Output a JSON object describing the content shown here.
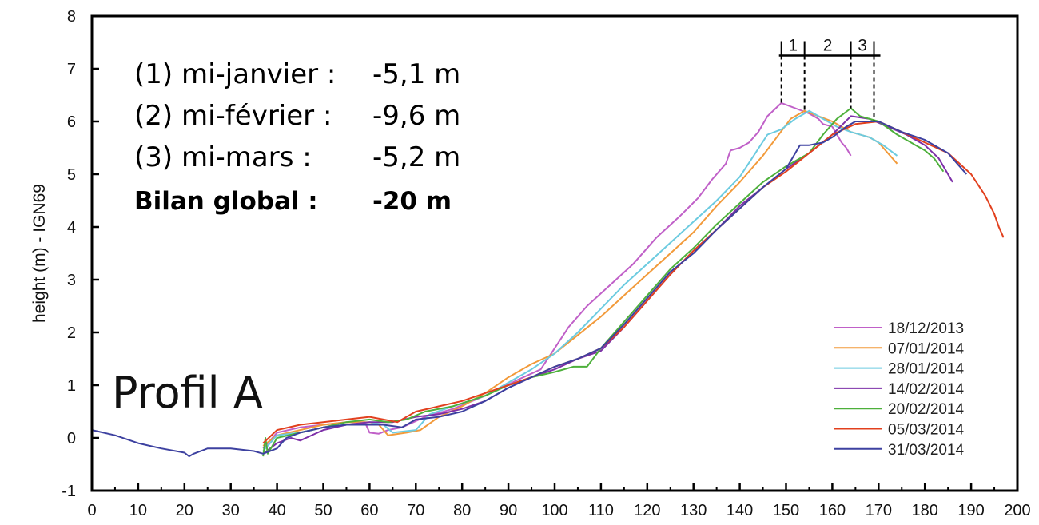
{
  "chart_data": {
    "type": "line",
    "xlabel": "",
    "ylabel": "height (m) - IGN69",
    "xlim": [
      0,
      200
    ],
    "ylim": [
      -1,
      8
    ],
    "x_ticks": [
      "0",
      "10",
      "20",
      "30",
      "40",
      "50",
      "60",
      "70",
      "80",
      "90",
      "100",
      "110",
      "120",
      "130",
      "140",
      "150",
      "160",
      "170",
      "180",
      "190",
      "200"
    ],
    "y_ticks": [
      "-1",
      "0",
      "1",
      "2",
      "3",
      "4",
      "5",
      "6",
      "7",
      "8"
    ],
    "grid": false,
    "legend_position": "bottom-right",
    "annotations": {
      "line1_label": "(1) mi-janvier :",
      "line1_value": "-5,1 m",
      "line2_label": "(2) mi-février :",
      "line2_value": "-9,6 m",
      "line3_label": "(3) mi-mars :",
      "line3_value": "-5,2 m",
      "total_label": "Bilan global :",
      "total_value": "-20 m",
      "profil": "Profil A",
      "zones": [
        "1",
        "2",
        "3"
      ]
    },
    "retreat_markers_x": [
      149,
      154,
      164,
      169
    ],
    "retreat_bar_y": 7.25,
    "series": [
      {
        "name": "18/12/2013",
        "color": "#c060c8",
        "points": [
          [
            37,
            -0.2
          ],
          [
            40,
            0.1
          ],
          [
            45,
            0.2
          ],
          [
            50,
            0.25
          ],
          [
            55,
            0.3
          ],
          [
            59,
            0.3
          ],
          [
            60,
            0.1
          ],
          [
            62,
            0.08
          ],
          [
            64,
            0.15
          ],
          [
            67,
            0.2
          ],
          [
            72,
            0.4
          ],
          [
            78,
            0.55
          ],
          [
            85,
            0.8
          ],
          [
            92,
            1.1
          ],
          [
            97,
            1.3
          ],
          [
            100,
            1.7
          ],
          [
            103,
            2.1
          ],
          [
            107,
            2.5
          ],
          [
            112,
            2.9
          ],
          [
            117,
            3.3
          ],
          [
            122,
            3.8
          ],
          [
            127,
            4.2
          ],
          [
            131,
            4.55
          ],
          [
            134,
            4.9
          ],
          [
            137,
            5.2
          ],
          [
            138,
            5.45
          ],
          [
            140,
            5.5
          ],
          [
            142,
            5.6
          ],
          [
            144,
            5.8
          ],
          [
            146,
            6.1
          ],
          [
            149,
            6.35
          ],
          [
            152,
            6.25
          ],
          [
            155,
            6.15
          ],
          [
            157,
            6.05
          ],
          [
            158,
            5.95
          ],
          [
            160,
            5.9
          ],
          [
            161,
            5.75
          ],
          [
            162,
            5.6
          ],
          [
            163,
            5.5
          ],
          [
            164,
            5.35
          ]
        ]
      },
      {
        "name": "07/01/2014",
        "color": "#f29a3a",
        "points": [
          [
            37,
            -0.15
          ],
          [
            40,
            0.05
          ],
          [
            45,
            0.15
          ],
          [
            50,
            0.25
          ],
          [
            55,
            0.3
          ],
          [
            60,
            0.3
          ],
          [
            62,
            0.25
          ],
          [
            64,
            0.05
          ],
          [
            68,
            0.1
          ],
          [
            71,
            0.15
          ],
          [
            75,
            0.4
          ],
          [
            80,
            0.6
          ],
          [
            85,
            0.85
          ],
          [
            90,
            1.15
          ],
          [
            95,
            1.4
          ],
          [
            100,
            1.6
          ],
          [
            105,
            1.95
          ],
          [
            110,
            2.3
          ],
          [
            115,
            2.7
          ],
          [
            120,
            3.1
          ],
          [
            125,
            3.5
          ],
          [
            130,
            3.9
          ],
          [
            135,
            4.4
          ],
          [
            140,
            4.85
          ],
          [
            145,
            5.35
          ],
          [
            148,
            5.7
          ],
          [
            151,
            6.05
          ],
          [
            154,
            6.2
          ],
          [
            157,
            6.1
          ],
          [
            160,
            6.0
          ],
          [
            164,
            5.8
          ],
          [
            168,
            5.7
          ],
          [
            170,
            5.6
          ],
          [
            172,
            5.4
          ],
          [
            174,
            5.2
          ]
        ]
      },
      {
        "name": "28/01/2014",
        "color": "#6ccbe0",
        "points": [
          [
            37,
            -0.25
          ],
          [
            40,
            0.05
          ],
          [
            45,
            0.1
          ],
          [
            50,
            0.2
          ],
          [
            55,
            0.25
          ],
          [
            60,
            0.3
          ],
          [
            63,
            0.25
          ],
          [
            65,
            0.1
          ],
          [
            70,
            0.15
          ],
          [
            73,
            0.45
          ],
          [
            78,
            0.6
          ],
          [
            85,
            0.8
          ],
          [
            90,
            1.05
          ],
          [
            95,
            1.3
          ],
          [
            100,
            1.6
          ],
          [
            105,
            2.0
          ],
          [
            110,
            2.45
          ],
          [
            115,
            2.9
          ],
          [
            120,
            3.3
          ],
          [
            125,
            3.7
          ],
          [
            130,
            4.1
          ],
          [
            135,
            4.5
          ],
          [
            140,
            4.95
          ],
          [
            143,
            5.35
          ],
          [
            146,
            5.75
          ],
          [
            149,
            5.85
          ],
          [
            152,
            6.05
          ],
          [
            155,
            6.2
          ],
          [
            158,
            6.05
          ],
          [
            161,
            5.9
          ],
          [
            164,
            5.8
          ],
          [
            168,
            5.7
          ],
          [
            171,
            5.55
          ],
          [
            174,
            5.35
          ]
        ]
      },
      {
        "name": "14/02/2014",
        "color": "#7d2fa8",
        "points": [
          [
            37,
            -0.3
          ],
          [
            40,
            -0.1
          ],
          [
            43,
            0.0
          ],
          [
            45,
            -0.05
          ],
          [
            50,
            0.15
          ],
          [
            55,
            0.25
          ],
          [
            60,
            0.3
          ],
          [
            65,
            0.3
          ],
          [
            70,
            0.4
          ],
          [
            75,
            0.45
          ],
          [
            80,
            0.55
          ],
          [
            85,
            0.7
          ],
          [
            90,
            0.95
          ],
          [
            95,
            1.15
          ],
          [
            100,
            1.3
          ],
          [
            105,
            1.5
          ],
          [
            110,
            1.65
          ],
          [
            115,
            2.1
          ],
          [
            120,
            2.6
          ],
          [
            125,
            3.1
          ],
          [
            130,
            3.55
          ],
          [
            135,
            3.95
          ],
          [
            140,
            4.4
          ],
          [
            145,
            4.75
          ],
          [
            150,
            5.1
          ],
          [
            155,
            5.4
          ],
          [
            160,
            5.75
          ],
          [
            164,
            6.1
          ],
          [
            168,
            6.05
          ],
          [
            172,
            5.9
          ],
          [
            176,
            5.75
          ],
          [
            180,
            5.55
          ],
          [
            183,
            5.3
          ],
          [
            186,
            4.85
          ]
        ]
      },
      {
        "name": "20/02/2014",
        "color": "#4db03b",
        "points": [
          [
            37,
            -0.35
          ],
          [
            37.5,
            0.0
          ],
          [
            38,
            -0.3
          ],
          [
            40,
            0.0
          ],
          [
            45,
            0.1
          ],
          [
            50,
            0.2
          ],
          [
            55,
            0.3
          ],
          [
            60,
            0.35
          ],
          [
            64,
            0.3
          ],
          [
            68,
            0.35
          ],
          [
            72,
            0.5
          ],
          [
            78,
            0.6
          ],
          [
            85,
            0.8
          ],
          [
            90,
            1.0
          ],
          [
            95,
            1.15
          ],
          [
            100,
            1.25
          ],
          [
            104,
            1.35
          ],
          [
            107,
            1.35
          ],
          [
            110,
            1.7
          ],
          [
            115,
            2.2
          ],
          [
            120,
            2.7
          ],
          [
            125,
            3.2
          ],
          [
            130,
            3.6
          ],
          [
            135,
            4.05
          ],
          [
            140,
            4.45
          ],
          [
            145,
            4.85
          ],
          [
            150,
            5.15
          ],
          [
            155,
            5.4
          ],
          [
            158,
            5.75
          ],
          [
            161,
            6.05
          ],
          [
            164,
            6.25
          ],
          [
            166,
            6.1
          ],
          [
            170,
            6.0
          ],
          [
            174,
            5.75
          ],
          [
            178,
            5.55
          ],
          [
            180,
            5.45
          ],
          [
            182,
            5.3
          ],
          [
            184,
            5.05
          ]
        ]
      },
      {
        "name": "05/03/2014",
        "color": "#e2401e",
        "points": [
          [
            37,
            -0.1
          ],
          [
            40,
            0.15
          ],
          [
            45,
            0.25
          ],
          [
            50,
            0.3
          ],
          [
            55,
            0.35
          ],
          [
            60,
            0.4
          ],
          [
            63,
            0.35
          ],
          [
            66,
            0.3
          ],
          [
            70,
            0.5
          ],
          [
            75,
            0.6
          ],
          [
            80,
            0.7
          ],
          [
            85,
            0.85
          ],
          [
            90,
            1.0
          ],
          [
            95,
            1.15
          ],
          [
            100,
            1.35
          ],
          [
            105,
            1.5
          ],
          [
            110,
            1.7
          ],
          [
            115,
            2.1
          ],
          [
            120,
            2.6
          ],
          [
            125,
            3.1
          ],
          [
            130,
            3.55
          ],
          [
            135,
            3.95
          ],
          [
            140,
            4.35
          ],
          [
            145,
            4.75
          ],
          [
            150,
            5.05
          ],
          [
            155,
            5.4
          ],
          [
            160,
            5.75
          ],
          [
            165,
            5.95
          ],
          [
            170,
            6.0
          ],
          [
            175,
            5.8
          ],
          [
            180,
            5.6
          ],
          [
            185,
            5.4
          ],
          [
            190,
            5.0
          ],
          [
            193,
            4.6
          ],
          [
            195,
            4.25
          ],
          [
            196,
            4.0
          ],
          [
            197,
            3.8
          ]
        ]
      },
      {
        "name": "31/03/2014",
        "color": "#3d41a0",
        "points": [
          [
            0,
            0.15
          ],
          [
            5,
            0.05
          ],
          [
            10,
            -0.1
          ],
          [
            15,
            -0.2
          ],
          [
            20,
            -0.28
          ],
          [
            21,
            -0.35
          ],
          [
            22,
            -0.3
          ],
          [
            25,
            -0.2
          ],
          [
            30,
            -0.2
          ],
          [
            35,
            -0.25
          ],
          [
            37,
            -0.3
          ],
          [
            40,
            -0.2
          ],
          [
            42,
            0.0
          ],
          [
            45,
            0.1
          ],
          [
            50,
            0.2
          ],
          [
            55,
            0.25
          ],
          [
            60,
            0.25
          ],
          [
            63,
            0.25
          ],
          [
            67,
            0.2
          ],
          [
            70,
            0.35
          ],
          [
            75,
            0.4
          ],
          [
            80,
            0.5
          ],
          [
            85,
            0.7
          ],
          [
            90,
            0.95
          ],
          [
            95,
            1.15
          ],
          [
            100,
            1.35
          ],
          [
            105,
            1.5
          ],
          [
            110,
            1.7
          ],
          [
            115,
            2.15
          ],
          [
            120,
            2.65
          ],
          [
            125,
            3.15
          ],
          [
            130,
            3.5
          ],
          [
            135,
            3.95
          ],
          [
            140,
            4.35
          ],
          [
            145,
            4.75
          ],
          [
            150,
            5.1
          ],
          [
            153,
            5.55
          ],
          [
            155,
            5.55
          ],
          [
            158,
            5.6
          ],
          [
            160,
            5.7
          ],
          [
            163,
            5.9
          ],
          [
            165,
            6.0
          ],
          [
            170,
            6.0
          ],
          [
            175,
            5.8
          ],
          [
            180,
            5.65
          ],
          [
            185,
            5.4
          ],
          [
            187,
            5.2
          ],
          [
            189,
            5.0
          ]
        ]
      }
    ]
  }
}
